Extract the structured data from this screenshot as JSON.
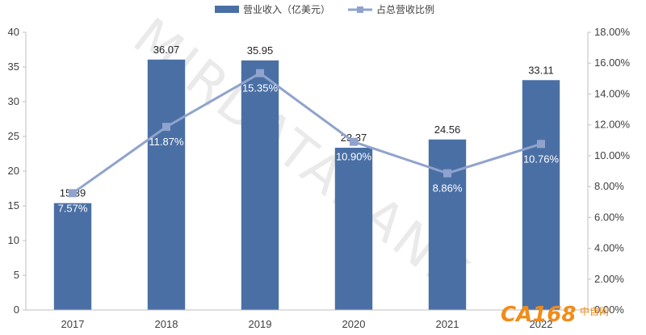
{
  "chart_data": {
    "type": "bar",
    "categories": [
      "2017",
      "2018",
      "2019",
      "2020",
      "2021",
      "2022"
    ],
    "series": [
      {
        "name": "营业收入（亿美元）",
        "type": "bar",
        "axis": "left",
        "values": [
          15.39,
          36.07,
          35.95,
          23.37,
          24.56,
          33.11
        ],
        "labels": [
          "15.39",
          "36.07",
          "35.95",
          "23.37",
          "24.56",
          "33.11"
        ],
        "color": "#4a6fa5"
      },
      {
        "name": "占总营收比例",
        "type": "line",
        "axis": "right",
        "values": [
          7.57,
          11.87,
          15.35,
          10.9,
          8.86,
          10.76
        ],
        "labels": [
          "7.57%",
          "11.87%",
          "15.35%",
          "10.90%",
          "8.86%",
          "10.76%"
        ],
        "color": "#8fa3cc"
      }
    ],
    "y_left": {
      "min": 0,
      "max": 40,
      "ticks": [
        "0",
        "5",
        "10",
        "15",
        "20",
        "25",
        "30",
        "35",
        "40"
      ]
    },
    "y_right": {
      "min": 0,
      "max": 18,
      "ticks": [
        "0.00%",
        "2.00%",
        "4.00%",
        "6.00%",
        "8.00%",
        "10.00%",
        "12.00%",
        "14.00%",
        "16.00%",
        "18.00%"
      ]
    },
    "legend_position": "top",
    "grid": false
  },
  "watermark": "MIRDATABANK",
  "logo": {
    "text": "CA168",
    "sub": "中自网"
  }
}
